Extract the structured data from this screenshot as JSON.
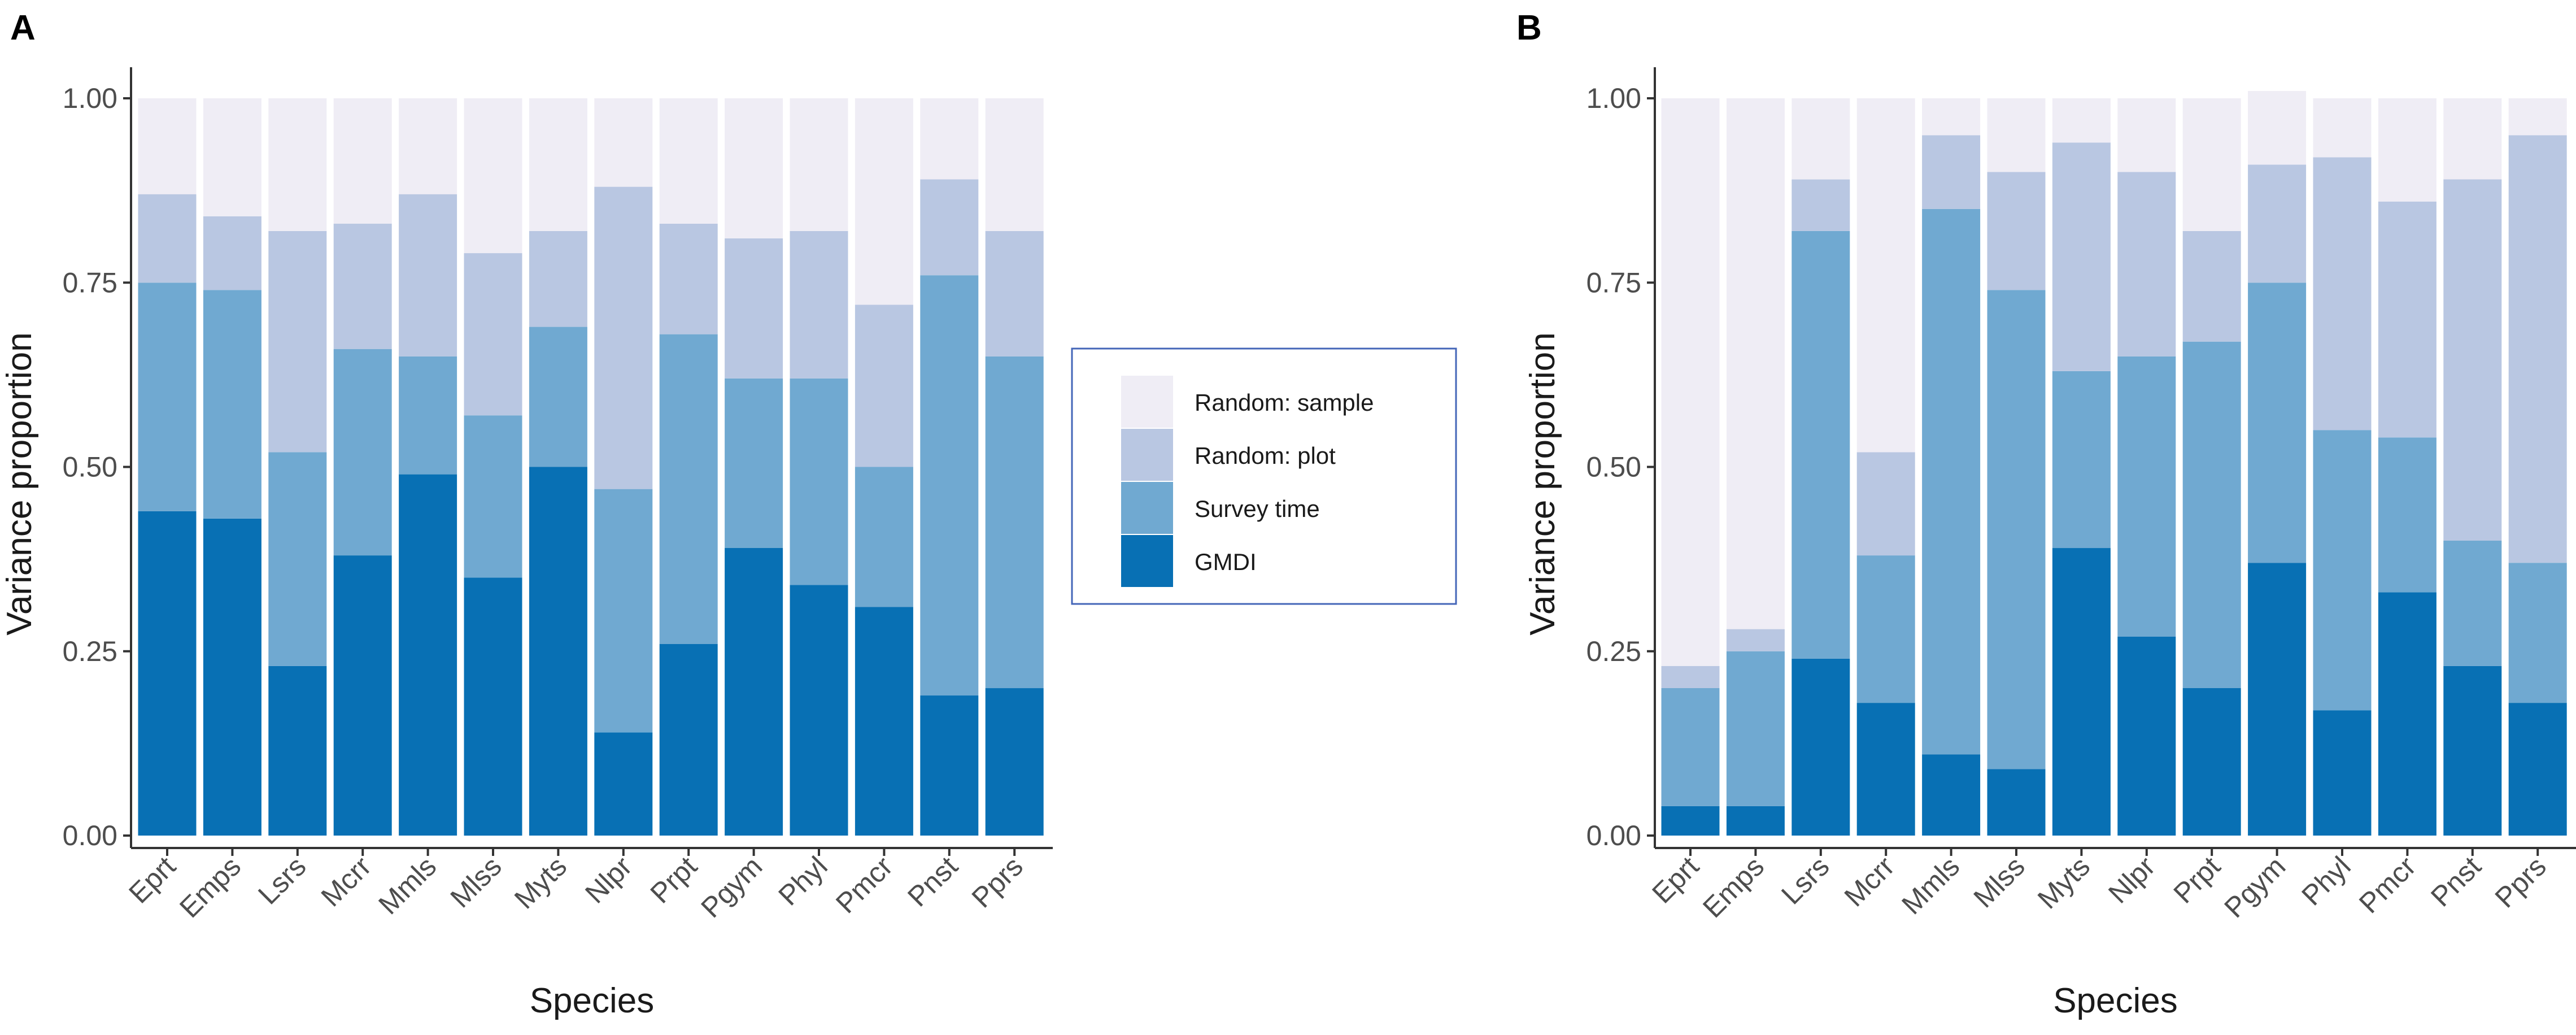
{
  "colors": {
    "GMDI": "#0870b4",
    "Survey time": "#70a9d1",
    "Random: plot": "#b9c7e2",
    "Random: sample": "#efedf5",
    "legend_border": "#4466b8",
    "axis": "#333333"
  },
  "legend": {
    "entries": [
      "Random: sample",
      "Random: plot",
      "Survey time",
      "GMDI"
    ]
  },
  "chart_data": [
    {
      "panel": "A",
      "type": "bar",
      "stacked": true,
      "xlabel": "Species",
      "ylabel": "Variance proportion",
      "ylim": [
        0,
        1
      ],
      "yticks": [
        "0.00",
        "0.25",
        "0.50",
        "0.75",
        "1.00"
      ],
      "categories": [
        "Eprt",
        "Emps",
        "Lsrs",
        "Mcrr",
        "Mmls",
        "Mlss",
        "Myts",
        "Nlpr",
        "Prpt",
        "Pgym",
        "Phyl",
        "Pmcr",
        "Pnst",
        "Pprs"
      ],
      "series": [
        {
          "name": "GMDI",
          "values": [
            0.44,
            0.43,
            0.23,
            0.38,
            0.49,
            0.35,
            0.5,
            0.14,
            0.26,
            0.39,
            0.34,
            0.31,
            0.19,
            0.2
          ]
        },
        {
          "name": "Survey time",
          "values": [
            0.31,
            0.31,
            0.29,
            0.28,
            0.16,
            0.22,
            0.19,
            0.33,
            0.42,
            0.23,
            0.28,
            0.19,
            0.57,
            0.45
          ]
        },
        {
          "name": "Random: plot",
          "values": [
            0.12,
            0.1,
            0.3,
            0.17,
            0.22,
            0.22,
            0.13,
            0.41,
            0.15,
            0.19,
            0.2,
            0.22,
            0.13,
            0.17
          ]
        },
        {
          "name": "Random: sample",
          "values": [
            0.13,
            0.16,
            0.18,
            0.17,
            0.13,
            0.21,
            0.18,
            0.12,
            0.17,
            0.19,
            0.18,
            0.28,
            0.11,
            0.18
          ]
        }
      ]
    },
    {
      "panel": "B",
      "type": "bar",
      "stacked": true,
      "xlabel": "Species",
      "ylabel": "Variance proportion",
      "ylim": [
        0,
        1
      ],
      "yticks": [
        "0.00",
        "0.25",
        "0.50",
        "0.75",
        "1.00"
      ],
      "categories": [
        "Eprt",
        "Emps",
        "Lsrs",
        "Mcrr",
        "Mmls",
        "Mlss",
        "Myts",
        "Nlpr",
        "Prpt",
        "Pgym",
        "Phyl",
        "Pmcr",
        "Pnst",
        "Pprs"
      ],
      "series": [
        {
          "name": "GMDI",
          "values": [
            0.04,
            0.04,
            0.24,
            0.18,
            0.11,
            0.09,
            0.39,
            0.27,
            0.2,
            0.37,
            0.17,
            0.33,
            0.23,
            0.18
          ]
        },
        {
          "name": "Survey time",
          "values": [
            0.16,
            0.21,
            0.58,
            0.2,
            0.74,
            0.65,
            0.24,
            0.38,
            0.47,
            0.38,
            0.38,
            0.21,
            0.17,
            0.19
          ]
        },
        {
          "name": "Random: plot",
          "values": [
            0.03,
            0.03,
            0.07,
            0.14,
            0.1,
            0.16,
            0.31,
            0.25,
            0.15,
            0.16,
            0.37,
            0.32,
            0.49,
            0.58
          ]
        },
        {
          "name": "Random: sample",
          "values": [
            0.77,
            0.72,
            0.11,
            0.48,
            0.05,
            0.1,
            0.06,
            0.1,
            0.18,
            0.1,
            0.08,
            0.14,
            0.11,
            0.05
          ]
        }
      ]
    }
  ]
}
